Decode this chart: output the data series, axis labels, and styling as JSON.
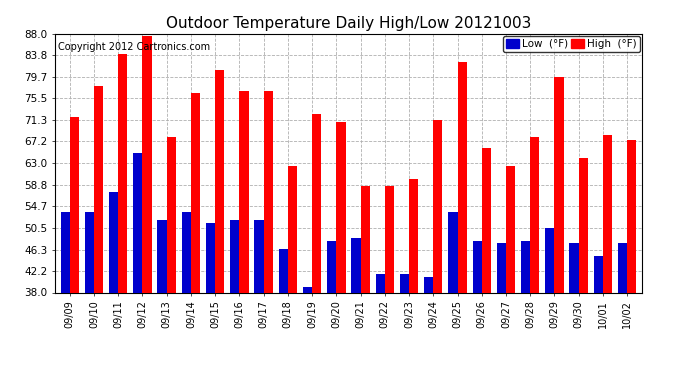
{
  "title": "Outdoor Temperature Daily High/Low 20121003",
  "copyright": "Copyright 2012 Cartronics.com",
  "legend_low": "Low  (°F)",
  "legend_high": "High  (°F)",
  "dates": [
    "09/09",
    "09/10",
    "09/11",
    "09/12",
    "09/13",
    "09/14",
    "09/15",
    "09/16",
    "09/17",
    "09/18",
    "09/19",
    "09/20",
    "09/21",
    "09/22",
    "09/23",
    "09/24",
    "09/25",
    "09/26",
    "09/27",
    "09/28",
    "09/29",
    "09/30",
    "10/01",
    "10/02"
  ],
  "highs": [
    72.0,
    78.0,
    84.0,
    87.5,
    68.0,
    76.5,
    81.0,
    77.0,
    77.0,
    62.5,
    72.5,
    71.0,
    58.5,
    58.5,
    60.0,
    71.3,
    82.5,
    66.0,
    62.5,
    68.0,
    79.7,
    64.0,
    68.5,
    67.5
  ],
  "lows": [
    53.5,
    53.5,
    57.5,
    65.0,
    52.0,
    53.5,
    51.5,
    52.0,
    52.0,
    46.5,
    39.0,
    48.0,
    48.5,
    41.5,
    41.5,
    41.0,
    53.5,
    48.0,
    47.5,
    48.0,
    50.5,
    47.5,
    45.0,
    47.5
  ],
  "ylim_min": 38.0,
  "ylim_max": 88.0,
  "yticks": [
    38.0,
    42.2,
    46.3,
    50.5,
    54.7,
    58.8,
    63.0,
    67.2,
    71.3,
    75.5,
    79.7,
    83.8,
    88.0
  ],
  "high_color": "#ff0000",
  "low_color": "#0000cc",
  "bg_color": "#ffffff",
  "grid_color": "#b0b0b0",
  "title_fontsize": 11,
  "copyright_fontsize": 7,
  "bar_width": 0.38,
  "bar_bottom": 38.0
}
